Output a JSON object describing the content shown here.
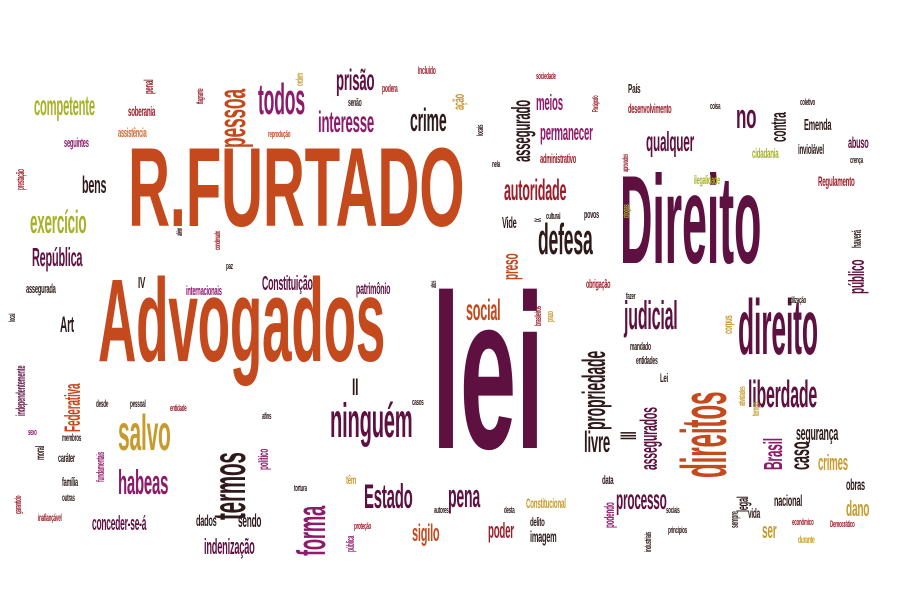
{
  "words": [
    "R.FURTADO",
    "Advogados",
    "lei",
    "Direito",
    "direito",
    "direitos",
    "ninguém",
    "termos",
    "salvo",
    "pessoa",
    "todos",
    "habeas",
    "forma",
    "Estado",
    "pena",
    "defesa",
    "autoridade",
    "qualquer",
    "judicial",
    "liberdade",
    "crime",
    "prisão",
    "interesse",
    "competente",
    "exercício",
    "República",
    "bens",
    "social",
    "propriedade",
    "livre",
    "processo",
    "Brasil",
    "caso",
    "crimes",
    "obras",
    "dano",
    "assegurados",
    "assegurado",
    "meios",
    "permanecer",
    "Constituição",
    "patrimônio",
    "sigilo",
    "poder",
    "imagem",
    "indenização",
    "dados",
    "sendo",
    "conceder-se-á",
    "Federativa",
    "Art",
    "IV",
    "II",
    "III",
    "Vide",
    "preso",
    "contra",
    "Emenda",
    "inviolável",
    "cidadania",
    "abuso",
    "Regulamento",
    "público",
    "haverá",
    "segurança",
    "nacional",
    "vida",
    "legal",
    "ser",
    "sempre",
    "no",
    "soberania",
    "assistência",
    "seguintes",
    "prestação",
    "penal",
    "reprodução",
    "senão",
    "Incluído",
    "podera",
    "ação",
    "ordem",
    "flagrante",
    "assegurada",
    "local",
    "independentemente",
    "moral",
    "sexo",
    "família",
    "outras",
    "inafiançável",
    "membros",
    "caráter",
    "fundamentais",
    "desde",
    "pessoal",
    "entidade",
    "afins",
    "político",
    "tortura",
    "têm",
    "proteção",
    "pública",
    "autores",
    "desta",
    "Constitucional",
    "delito",
    "data",
    "podendo",
    "industriais",
    "princípios",
    "sociais",
    "econômico",
    "durante",
    "Democrático",
    "casos",
    "mandado",
    "entidades",
    "Lei",
    "atividades",
    "tempo",
    "corpus",
    "utilização",
    "cultural",
    "povos",
    "obrigação",
    "fazer",
    "prazo",
    "brasileiros",
    "paz",
    "internacionais",
    "condenado",
    "além",
    "atos",
    "ilegalidade",
    "crença",
    "coletivo",
    "coisa",
    "País",
    "desenvolvimento",
    "Parágrafo",
    "sociedade",
    "administrativo",
    "aprovados",
    "drogas",
    "nela",
    "locais",
    "garantido",
    "IX"
  ]
}
